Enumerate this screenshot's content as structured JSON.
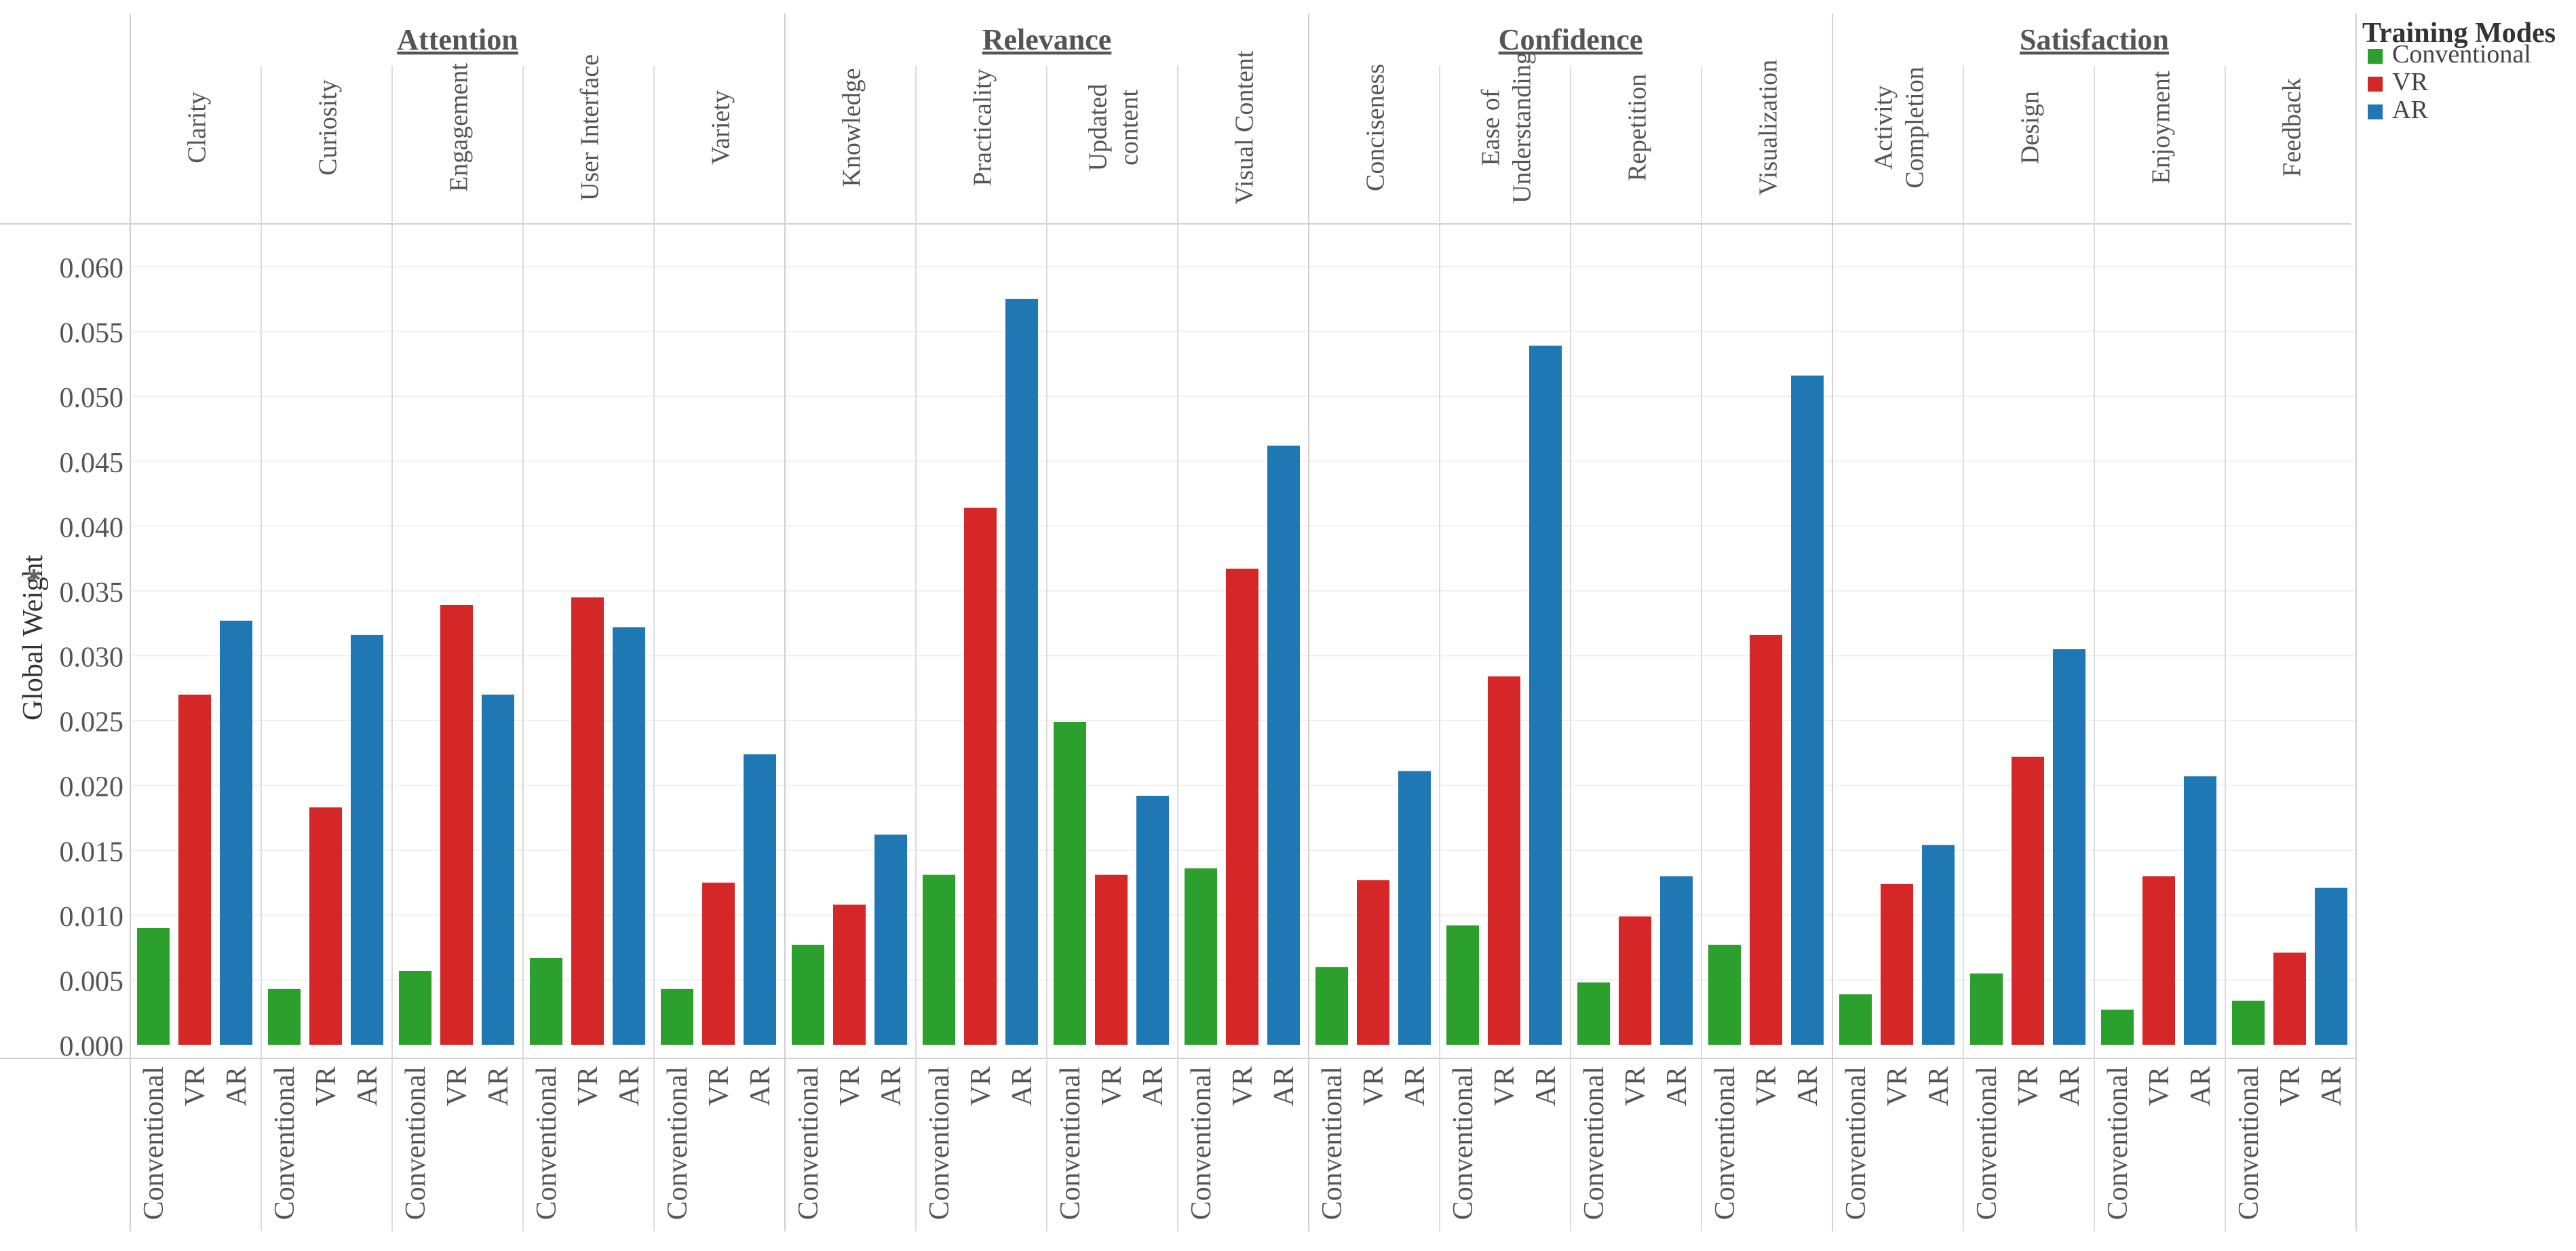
{
  "chart_data": {
    "type": "bar",
    "ylabel": "Global Weight",
    "ylim": [
      0,
      0.06
    ],
    "yticks": [
      "0.060",
      "0.055",
      "0.050",
      "0.045",
      "0.040",
      "0.035",
      "0.030",
      "0.025",
      "0.020",
      "0.015",
      "0.010",
      "0.005",
      "0.000"
    ],
    "mode_names": [
      "Conventional",
      "VR",
      "AR"
    ],
    "legend": {
      "title": "Training Modes",
      "items": [
        {
          "label": "Conventional",
          "color": "#2ca02c"
        },
        {
          "label": "VR",
          "color": "#d62728"
        },
        {
          "label": "AR",
          "color": "#1f77b4"
        }
      ]
    },
    "groups": [
      {
        "name": "Attention",
        "criteria": [
          {
            "label": [
              "Clarity"
            ],
            "values": [
              0.009,
              0.027,
              0.0327
            ]
          },
          {
            "label": [
              "Curiosity"
            ],
            "values": [
              0.0043,
              0.0183,
              0.0316
            ]
          },
          {
            "label": [
              "Engagement"
            ],
            "values": [
              0.0057,
              0.0339,
              0.027
            ]
          },
          {
            "label": [
              "User Interface"
            ],
            "values": [
              0.0067,
              0.0345,
              0.0322
            ]
          },
          {
            "label": [
              "Variety"
            ],
            "values": [
              0.0043,
              0.0125,
              0.0224
            ]
          }
        ]
      },
      {
        "name": "Relevance",
        "criteria": [
          {
            "label": [
              "Knowledge"
            ],
            "values": [
              0.0077,
              0.0108,
              0.0162
            ]
          },
          {
            "label": [
              "Practicality"
            ],
            "values": [
              0.0131,
              0.0414,
              0.0575
            ]
          },
          {
            "label": [
              "Updated",
              "content"
            ],
            "values": [
              0.0249,
              0.0131,
              0.0192
            ]
          },
          {
            "label": [
              "Visual Content"
            ],
            "values": [
              0.0136,
              0.0367,
              0.0462
            ]
          }
        ]
      },
      {
        "name": "Confidence",
        "criteria": [
          {
            "label": [
              "Conciseness"
            ],
            "values": [
              0.006,
              0.0127,
              0.0211
            ]
          },
          {
            "label": [
              "Ease of",
              "Understanding"
            ],
            "values": [
              0.0092,
              0.0284,
              0.0539
            ]
          },
          {
            "label": [
              "Repetition"
            ],
            "values": [
              0.0048,
              0.0099,
              0.013
            ]
          },
          {
            "label": [
              "Visualization"
            ],
            "values": [
              0.0077,
              0.0316,
              0.0516
            ]
          }
        ]
      },
      {
        "name": "Satisfaction",
        "criteria": [
          {
            "label": [
              "Activity",
              "Completion"
            ],
            "values": [
              0.0039,
              0.0124,
              0.0154
            ]
          },
          {
            "label": [
              "Design"
            ],
            "values": [
              0.0055,
              0.0222,
              0.0305
            ]
          },
          {
            "label": [
              "Enjoyment"
            ],
            "values": [
              0.0027,
              0.013,
              0.0207
            ]
          },
          {
            "label": [
              "Feedback"
            ],
            "values": [
              0.0034,
              0.0071,
              0.0121
            ]
          }
        ]
      }
    ]
  }
}
